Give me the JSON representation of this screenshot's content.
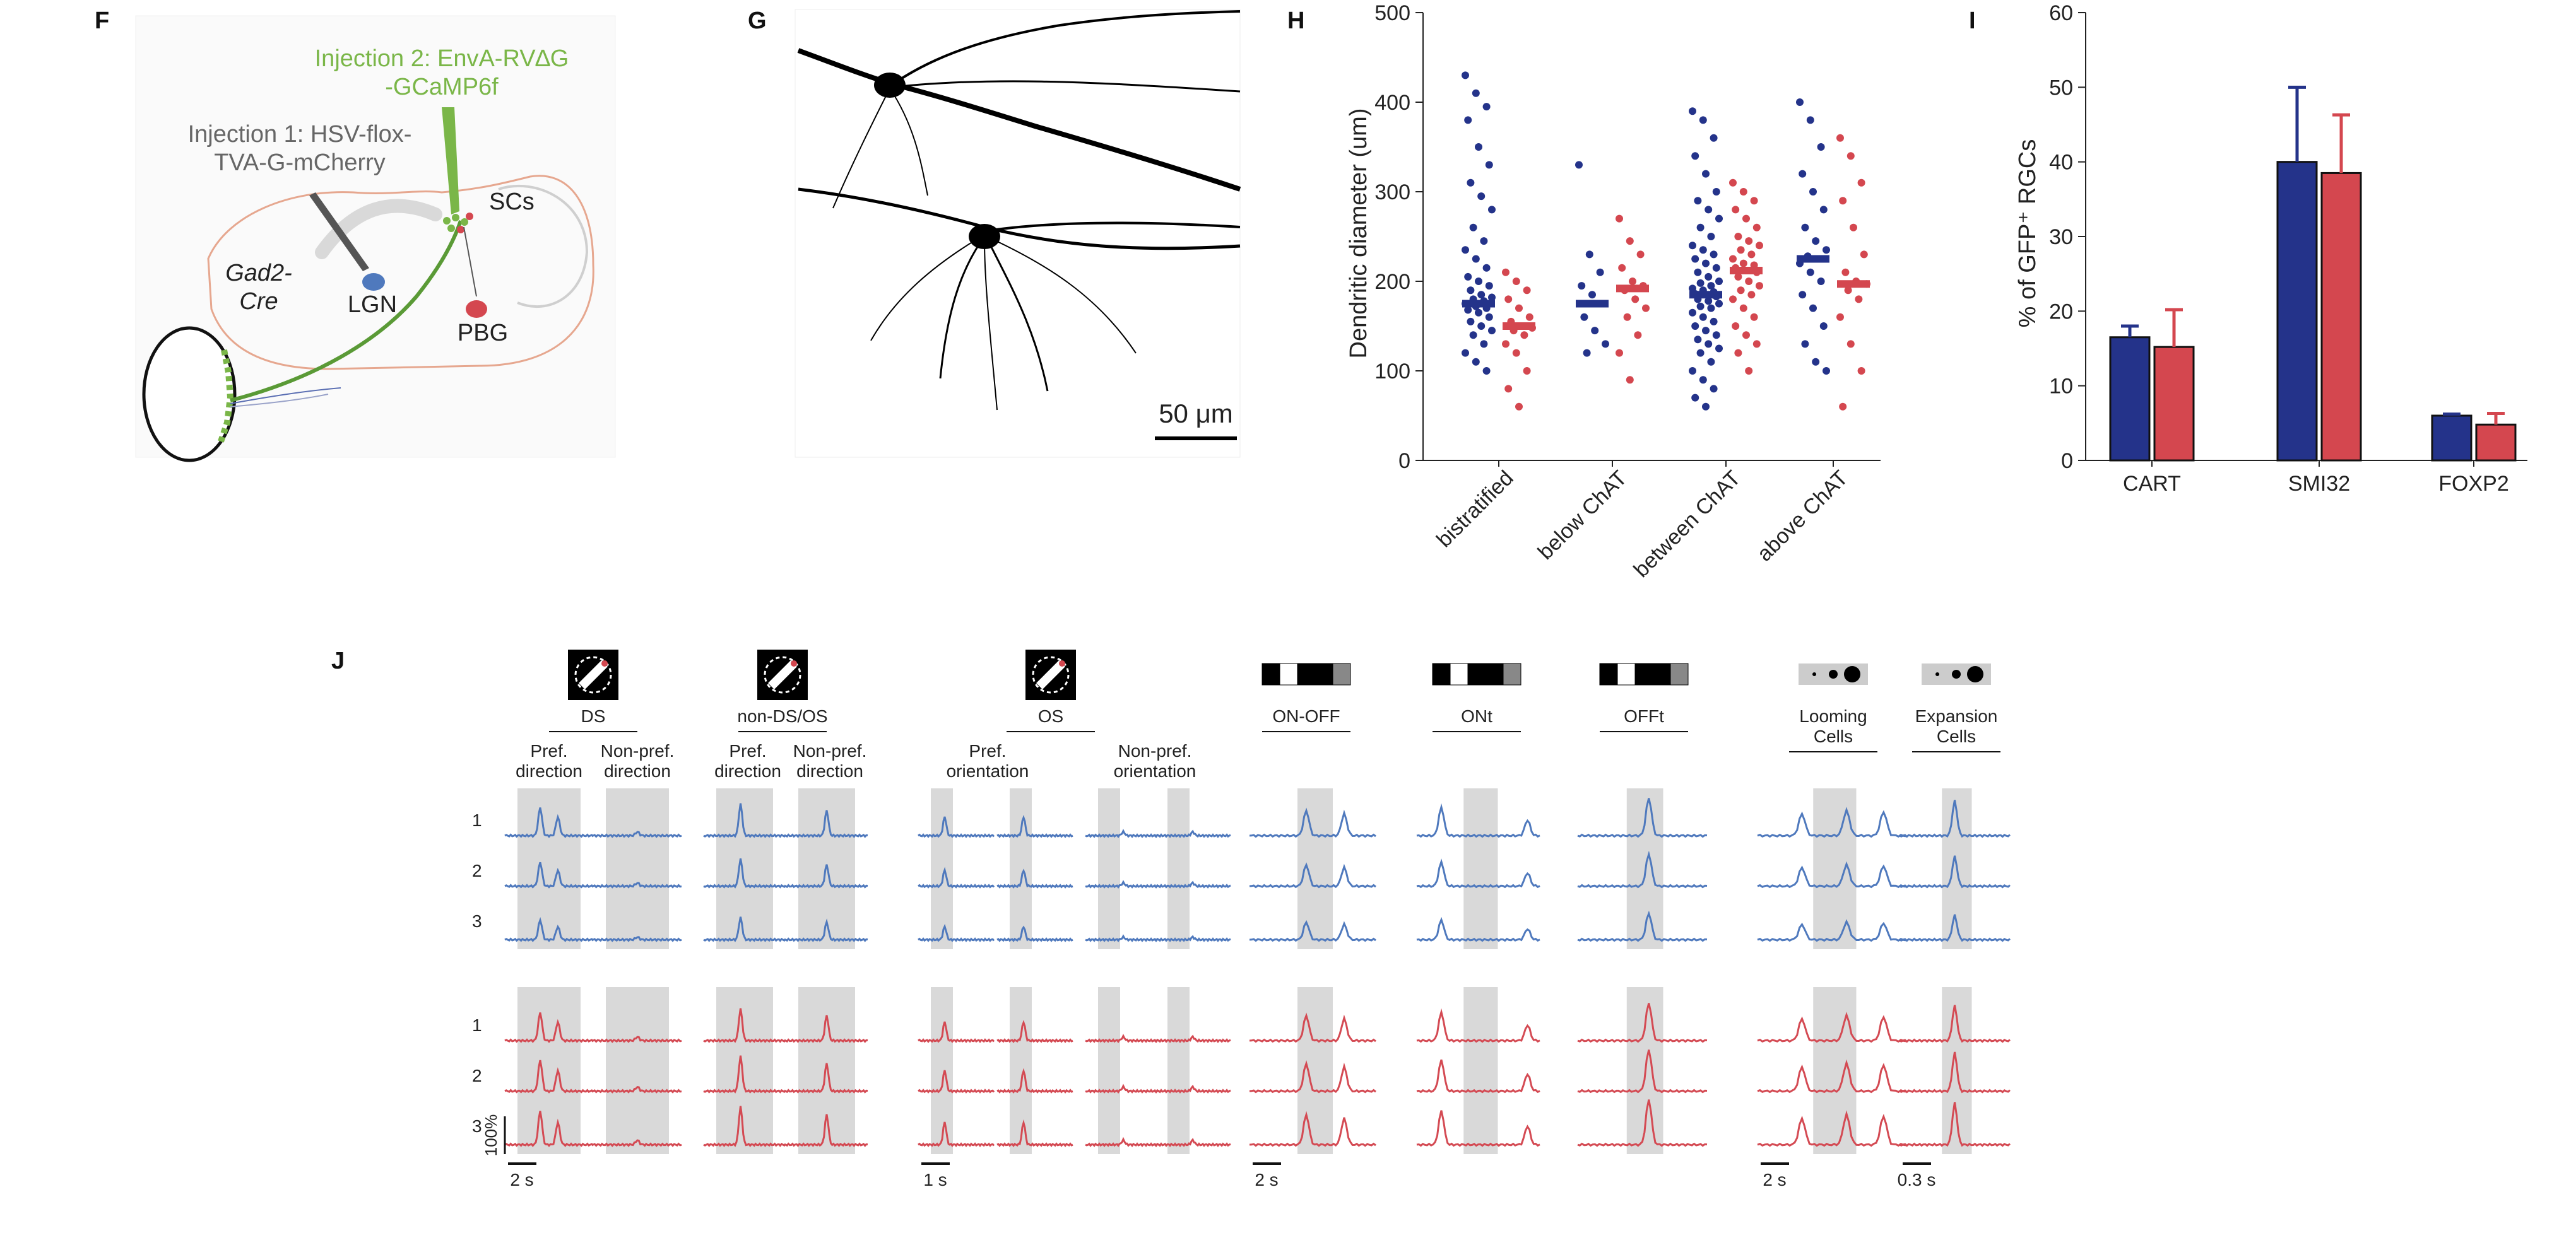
{
  "panel_letters": {
    "F": "F",
    "G": "G",
    "H": "H",
    "I": "I",
    "J": "J"
  },
  "colors": {
    "blue": "#24338a",
    "red": "#d4474f",
    "trace_blue": "#4f79bd",
    "trace_red": "#d44a53",
    "green": "#7ab648",
    "grey_band": "#d9d9d9"
  },
  "panel_f": {
    "injection2_line1": "Injection 2: EnvA-RV∆G",
    "injection2_line2": "-GCaMP6f",
    "injection1_line1": "Injection 1: HSV-flox-",
    "injection1_line2": "TVA-G-mCherry",
    "scs": "SCs",
    "gad2_line1": "Gad2-",
    "gad2_line2": "Cre",
    "lgn": "LGN",
    "pbg": "PBG"
  },
  "panel_g": {
    "scale_bar": "50 μm"
  },
  "chart_data": [
    {
      "type": "scatter",
      "panel": "H",
      "ylabel": "Dendritic diameter (um)",
      "ylim": [
        0,
        500
      ],
      "yticks": [
        0,
        100,
        200,
        300,
        400,
        500
      ],
      "categories": [
        "bistratified",
        "below ChAT",
        "between ChAT",
        "above ChAT"
      ],
      "series": [
        {
          "color": "blue",
          "medians": [
            175,
            175,
            185,
            225
          ],
          "points": [
            [
              430,
              410,
              395,
              380,
              350,
              330,
              310,
              295,
              280,
              260,
              245,
              235,
              225,
              215,
              205,
              200,
              195,
              190,
              185,
              182,
              180,
              178,
              175,
              172,
              170,
              168,
              165,
              160,
              155,
              150,
              145,
              140,
              130,
              120,
              110,
              100
            ],
            [
              330,
              230,
              210,
              195,
              185,
              175,
              160,
              145,
              130,
              120
            ],
            [
              390,
              380,
              360,
              340,
              320,
              300,
              290,
              280,
              270,
              260,
              250,
              240,
              235,
              230,
              225,
              220,
              215,
              210,
              205,
              200,
              198,
              195,
              192,
              190,
              188,
              186,
              185,
              183,
              180,
              178,
              175,
              172,
              170,
              165,
              160,
              155,
              150,
              145,
              140,
              135,
              130,
              125,
              120,
              110,
              100,
              90,
              80,
              70,
              60
            ],
            [
              400,
              380,
              350,
              320,
              300,
              280,
              260,
              245,
              235,
              228,
              225,
              220,
              210,
              200,
              185,
              170,
              150,
              130,
              110,
              100
            ]
          ]
        },
        {
          "color": "red",
          "medians": [
            150,
            192,
            212,
            197
          ],
          "points": [
            [
              210,
              200,
              190,
              180,
              170,
              160,
              155,
              150,
              148,
              145,
              140,
              130,
              120,
              100,
              80,
              60
            ],
            [
              270,
              245,
              230,
              215,
              200,
              195,
              190,
              180,
              170,
              160,
              140,
              120,
              90
            ],
            [
              310,
              300,
              290,
              280,
              270,
              260,
              250,
              245,
              240,
              235,
              230,
              225,
              220,
              218,
              215,
              212,
              210,
              205,
              200,
              195,
              190,
              185,
              180,
              170,
              160,
              150,
              140,
              130,
              120,
              100
            ],
            [
              360,
              340,
              310,
              290,
              260,
              230,
              210,
              200,
              197,
              190,
              180,
              160,
              130,
              100,
              60
            ]
          ]
        }
      ]
    },
    {
      "type": "bar",
      "panel": "I",
      "ylabel": "% of GFP⁺ RGCs",
      "ylim": [
        0,
        60
      ],
      "yticks": [
        0,
        10,
        20,
        30,
        40,
        50,
        60
      ],
      "categories": [
        "CART",
        "SMI32",
        "FOXP2"
      ],
      "series": [
        {
          "color": "blue",
          "values": [
            16.5,
            40,
            6
          ],
          "errors": [
            1.5,
            10,
            0.2
          ]
        },
        {
          "color": "red",
          "values": [
            15.2,
            38.5,
            4.8
          ],
          "errors": [
            5,
            7.8,
            1.5
          ]
        }
      ]
    }
  ],
  "panel_j": {
    "rows_top": [
      "1",
      "2",
      "3"
    ],
    "rows_bottom": [
      "1",
      "2",
      "3"
    ],
    "scale_y": "100%",
    "groups": [
      {
        "title": "DS",
        "sub": [
          "Pref.\ndirection",
          "Non-pref.\ndirection"
        ],
        "scale": "2 s"
      },
      {
        "title": "non-DS/OS",
        "sub": [
          "Pref.\ndirection",
          "Non-pref.\ndirection"
        ],
        "scale": ""
      },
      {
        "title": "OS",
        "sub": [
          "Pref.\norientation",
          "Non-pref.\norientation"
        ],
        "scale": "1 s"
      },
      {
        "title": "ON-OFF",
        "sub": [],
        "scale": "2 s"
      },
      {
        "title": "ONt",
        "sub": [],
        "scale": ""
      },
      {
        "title": "OFFt",
        "sub": [],
        "scale": ""
      },
      {
        "title": "Looming\nCells",
        "sub": [],
        "scale": "2 s"
      },
      {
        "title": "Expansion\nCells",
        "sub": [],
        "scale": "0.3 s"
      }
    ]
  }
}
